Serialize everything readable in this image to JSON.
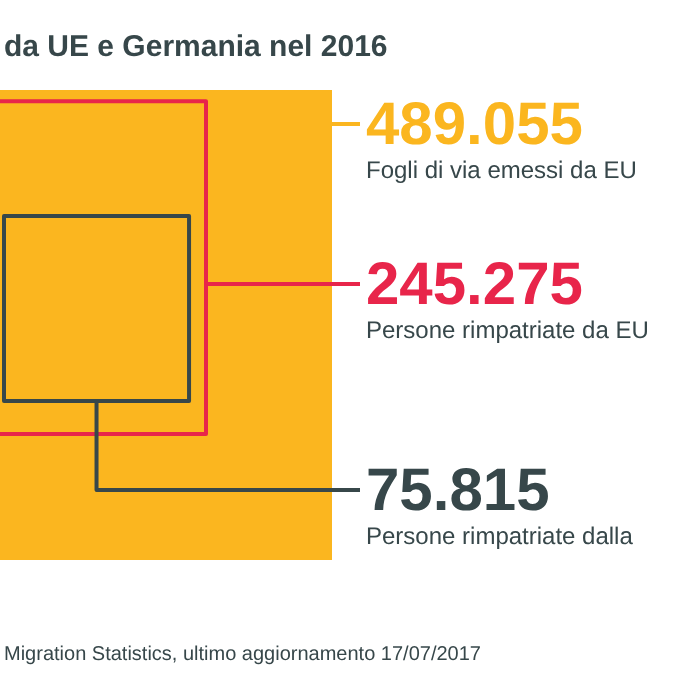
{
  "chart_data": {
    "type": "other",
    "title": "da UE e Germania nel 2016",
    "categories": [
      "Fogli di via emessi da EU",
      "Persone rimpatriate da EU",
      "Persone rimpatriate dalla"
    ],
    "values": [
      489055,
      245275,
      75815
    ],
    "value_labels": [
      "489.055",
      "245.275",
      "75.815"
    ],
    "colors": [
      "#fbb61f",
      "#e8254a",
      "#37474a"
    ],
    "annotations": [
      "Migration Statistics, ultimo aggiornamento 17/07/2017"
    ]
  }
}
